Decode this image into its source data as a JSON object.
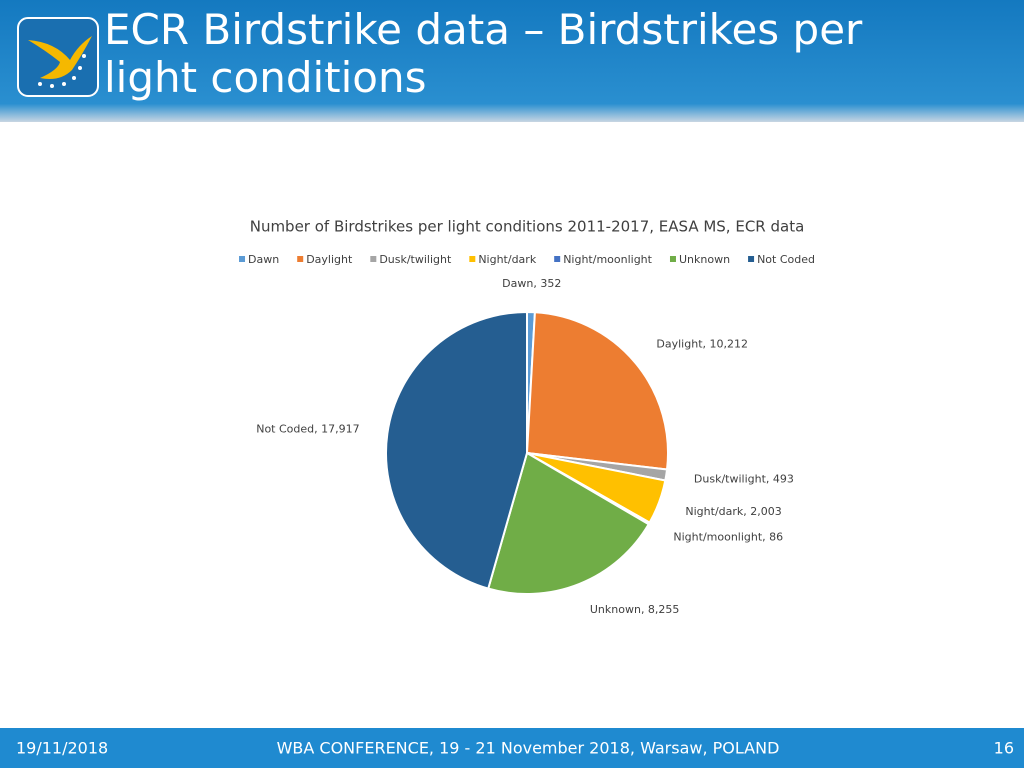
{
  "header": {
    "title": "ECR Birdstrike data – Birdstrikes per light conditions"
  },
  "footer": {
    "date": "19/11/2018",
    "event": "WBA CONFERENCE, 19 - 21 November 2018, Warsaw, POLAND",
    "page": "16"
  },
  "chart_data": {
    "type": "pie",
    "title": "Number of Birdstrikes per light conditions 2011-2017, EASA MS, ECR data",
    "categories": [
      "Dawn",
      "Daylight",
      "Dusk/twilight",
      "Night/dark",
      "Night/moonlight",
      "Unknown",
      "Not Coded"
    ],
    "values": [
      352,
      10212,
      493,
      2003,
      86,
      8255,
      17917
    ],
    "value_labels": [
      "Dawn, 352",
      "Daylight, 10,212",
      "Dusk/twilight, 493",
      "Night/dark, 2,003",
      "Night/moonlight, 86",
      "Unknown, 8,255",
      "Not Coded, 17,917"
    ],
    "colors": [
      "#5b9bd5",
      "#ed7d31",
      "#a5a5a5",
      "#ffc000",
      "#4472c4",
      "#70ad47",
      "#255e91"
    ],
    "legend": "top"
  }
}
